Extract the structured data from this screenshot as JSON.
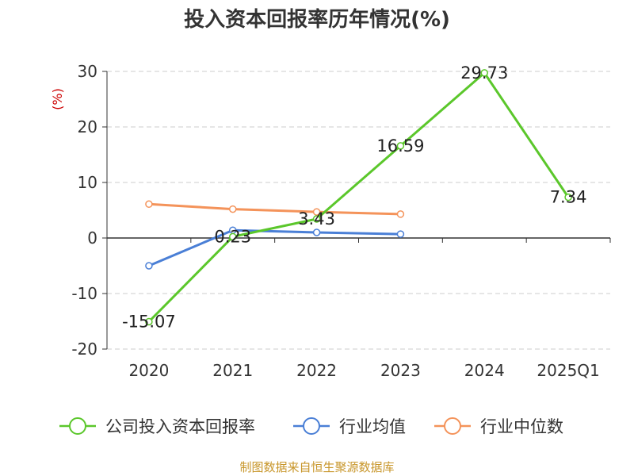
{
  "chart_data": {
    "type": "line",
    "title": "投入资本回报率历年情况(%)",
    "ylabel": "(%)",
    "xlabel": "",
    "categories": [
      "2020",
      "2021",
      "2022",
      "2023",
      "2024",
      "2025Q1"
    ],
    "ylim": [
      -20,
      30
    ],
    "yticks": [
      "30",
      "20",
      "10",
      "0",
      "-10",
      "-20"
    ],
    "grid": true,
    "legend_position": "bottom",
    "series": [
      {
        "name": "公司投入资本回报率",
        "color": "#5bc72b",
        "values": [
          -15.07,
          0.23,
          3.43,
          16.59,
          29.73,
          7.34
        ],
        "labels": [
          "-15.07",
          "0.23",
          "3.43",
          "16.59",
          "29.73",
          "7.34"
        ]
      },
      {
        "name": "行业均值",
        "color": "#4a7fd6",
        "values": [
          -5.0,
          1.4,
          1.0,
          0.7,
          null,
          null
        ]
      },
      {
        "name": "行业中位数",
        "color": "#f4935a",
        "values": [
          6.1,
          5.2,
          4.7,
          4.3,
          null,
          null
        ]
      }
    ]
  },
  "footer": "制图数据来自恒生聚源数据库"
}
